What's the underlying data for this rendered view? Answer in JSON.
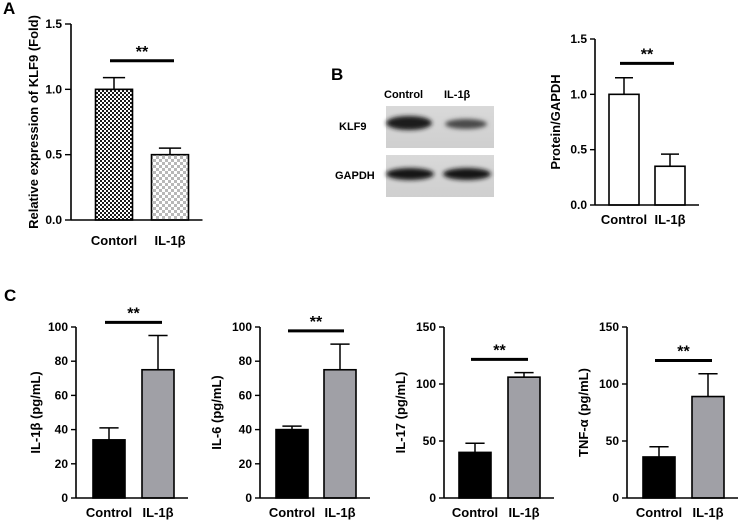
{
  "panels": {
    "a": "A",
    "b": "B",
    "c": "C"
  },
  "blot": {
    "lanes": [
      "Control",
      "IL-1β"
    ],
    "rows": [
      "KLF9",
      "GAPDH"
    ]
  },
  "chart_data": [
    {
      "id": "A",
      "type": "bar",
      "categories": [
        "Contorl",
        "IL-1β"
      ],
      "values": [
        1.0,
        0.5
      ],
      "errors": [
        0.09,
        0.05
      ],
      "fills": [
        "checker-dark",
        "checker-light"
      ],
      "ylabel": "Relative expression of KLF9 (Fold)",
      "ylim": [
        0,
        1.5
      ],
      "yticks": [
        0.0,
        0.5,
        1.0,
        1.5
      ],
      "ytick_labels": [
        "0.0",
        "0.5",
        "1.0",
        "1.5"
      ],
      "significance": "**"
    },
    {
      "id": "B",
      "type": "bar",
      "categories": [
        "Control",
        "IL-1β"
      ],
      "values": [
        1.0,
        0.35
      ],
      "errors": [
        0.15,
        0.11
      ],
      "fills": [
        "#ffffff",
        "#ffffff"
      ],
      "ylabel": "Protein/GAPDH",
      "ylim": [
        0,
        1.5
      ],
      "yticks": [
        0.0,
        0.5,
        1.0,
        1.5
      ],
      "ytick_labels": [
        "0.0",
        "0.5",
        "1.0",
        "1.5"
      ],
      "significance": "**"
    },
    {
      "id": "C1",
      "type": "bar",
      "categories": [
        "Control",
        "IL-1β"
      ],
      "values": [
        34,
        75
      ],
      "errors": [
        7,
        20
      ],
      "fills": [
        "#000000",
        "#a0a0a6"
      ],
      "ylabel": "IL-1β (pg/mL)",
      "ylim": [
        0,
        100
      ],
      "yticks": [
        0,
        20,
        40,
        60,
        80,
        100
      ],
      "ytick_labels": [
        "0",
        "20",
        "40",
        "60",
        "80",
        "100"
      ],
      "significance": "**"
    },
    {
      "id": "C2",
      "type": "bar",
      "categories": [
        "Control",
        "IL-1β"
      ],
      "values": [
        40,
        75
      ],
      "errors": [
        2,
        15
      ],
      "fills": [
        "#000000",
        "#a0a0a6"
      ],
      "ylabel": "IL-6 (pg/mL)",
      "ylim": [
        0,
        100
      ],
      "yticks": [
        0,
        20,
        40,
        60,
        80,
        100
      ],
      "ytick_labels": [
        "0",
        "20",
        "40",
        "60",
        "80",
        "100"
      ],
      "significance": "**"
    },
    {
      "id": "C3",
      "type": "bar",
      "categories": [
        "Control",
        "IL-1β"
      ],
      "values": [
        40,
        106
      ],
      "errors": [
        8,
        4
      ],
      "fills": [
        "#000000",
        "#a0a0a6"
      ],
      "ylabel": "IL-17 (pg/mL)",
      "ylim": [
        0,
        150
      ],
      "yticks": [
        0,
        50,
        100,
        150
      ],
      "ytick_labels": [
        "0",
        "50",
        "100",
        "150"
      ],
      "significance": "**"
    },
    {
      "id": "C4",
      "type": "bar",
      "categories": [
        "Control",
        "IL-1β"
      ],
      "values": [
        36,
        89
      ],
      "errors": [
        9,
        20
      ],
      "fills": [
        "#000000",
        "#a0a0a6"
      ],
      "ylabel": "TNF-α (pg/mL)",
      "ylim": [
        0,
        150
      ],
      "yticks": [
        0,
        50,
        100,
        150
      ],
      "ytick_labels": [
        "0",
        "50",
        "100",
        "150"
      ],
      "significance": "**"
    }
  ]
}
